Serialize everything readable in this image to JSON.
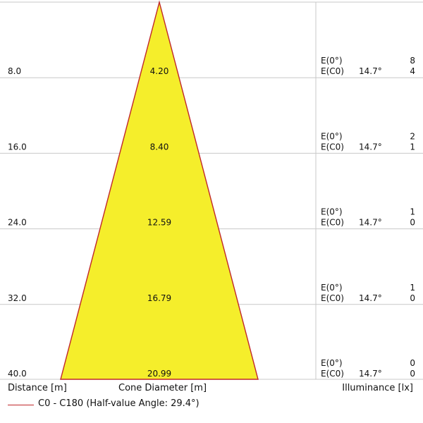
{
  "colors": {
    "cone_fill": "#f5ee2b",
    "cone_edge": "#c0282a",
    "grid": "#c8c8c8"
  },
  "rows": [
    {
      "distance": "8.0",
      "diameter": "4.20",
      "e0_label": "E(0°)",
      "e0_value": "8",
      "ec0_label": "E(C0)",
      "angle": "14.7°",
      "ec0_value": "4"
    },
    {
      "distance": "16.0",
      "diameter": "8.40",
      "e0_label": "E(0°)",
      "e0_value": "2",
      "ec0_label": "E(C0)",
      "angle": "14.7°",
      "ec0_value": "1"
    },
    {
      "distance": "24.0",
      "diameter": "12.59",
      "e0_label": "E(0°)",
      "e0_value": "1",
      "ec0_label": "E(C0)",
      "angle": "14.7°",
      "ec0_value": "0"
    },
    {
      "distance": "32.0",
      "diameter": "16.79",
      "e0_label": "E(0°)",
      "e0_value": "1",
      "ec0_label": "E(C0)",
      "angle": "14.7°",
      "ec0_value": "0"
    },
    {
      "distance": "40.0",
      "diameter": "20.99",
      "e0_label": "E(0°)",
      "e0_value": "0",
      "ec0_label": "E(C0)",
      "angle": "14.7°",
      "ec0_value": "0"
    }
  ],
  "footer": {
    "distance_label": "Distance [m]",
    "cone_label": "Cone Diameter [m]",
    "illuminance_label": "Illuminance [lx]"
  },
  "legend": {
    "text": "C0 - C180 (Half-value Angle: 29.4°)"
  }
}
